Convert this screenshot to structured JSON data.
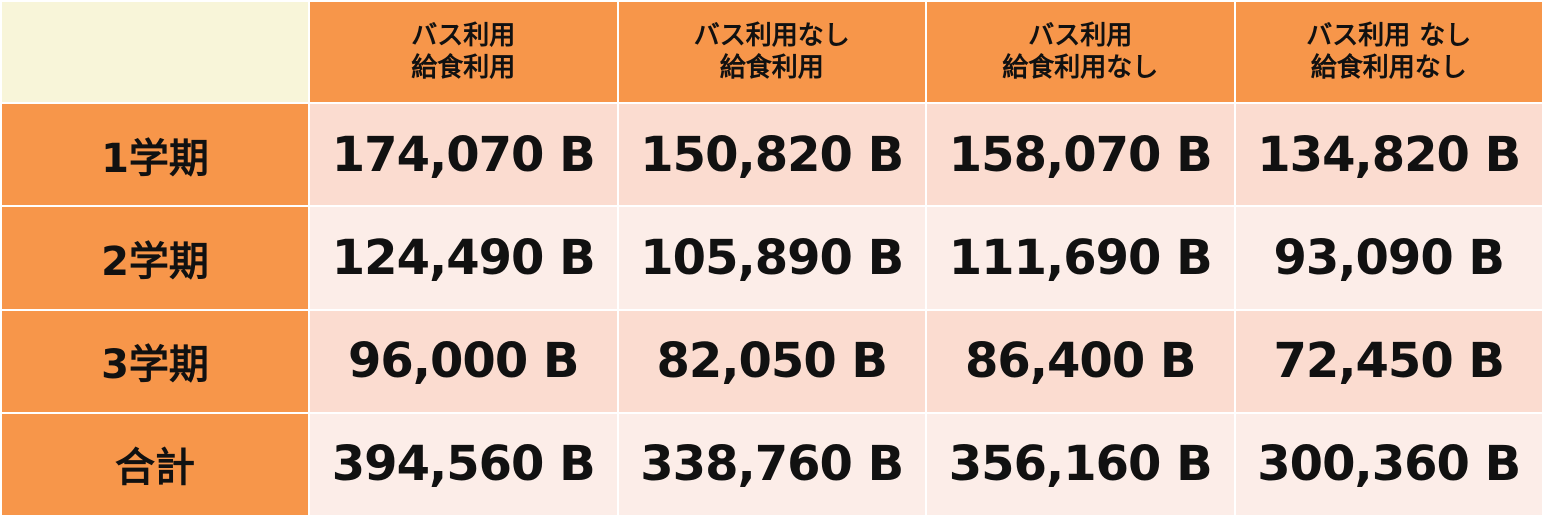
{
  "columns": [
    {
      "line1": "バス利用",
      "line2": "給食利用"
    },
    {
      "line1": "バス利用なし",
      "line2": "給食利用"
    },
    {
      "line1": "バス利用",
      "line2": "給食利用なし"
    },
    {
      "line1": "バス利用 なし",
      "line2": "給食利用なし"
    }
  ],
  "rows": [
    {
      "label": "1学期",
      "values": [
        "174,070 B",
        "150,820 B",
        "158,070 B",
        "134,820 B"
      ]
    },
    {
      "label": "2学期",
      "values": [
        "124,490 B",
        "105,890 B",
        "111,690 B",
        "93,090 B"
      ]
    },
    {
      "label": "3学期",
      "values": [
        "96,000 B",
        "82,050 B",
        "86,400 B",
        "72,450 B"
      ]
    },
    {
      "label": "合計",
      "values": [
        "394,560 B",
        "338,760 B",
        "356,160 B",
        "300,360 B"
      ]
    }
  ],
  "colors": {
    "header": "#f7964a",
    "corner": "#f8f5d9",
    "row_odd": "#fbdcd0",
    "row_even": "#fcede8"
  }
}
